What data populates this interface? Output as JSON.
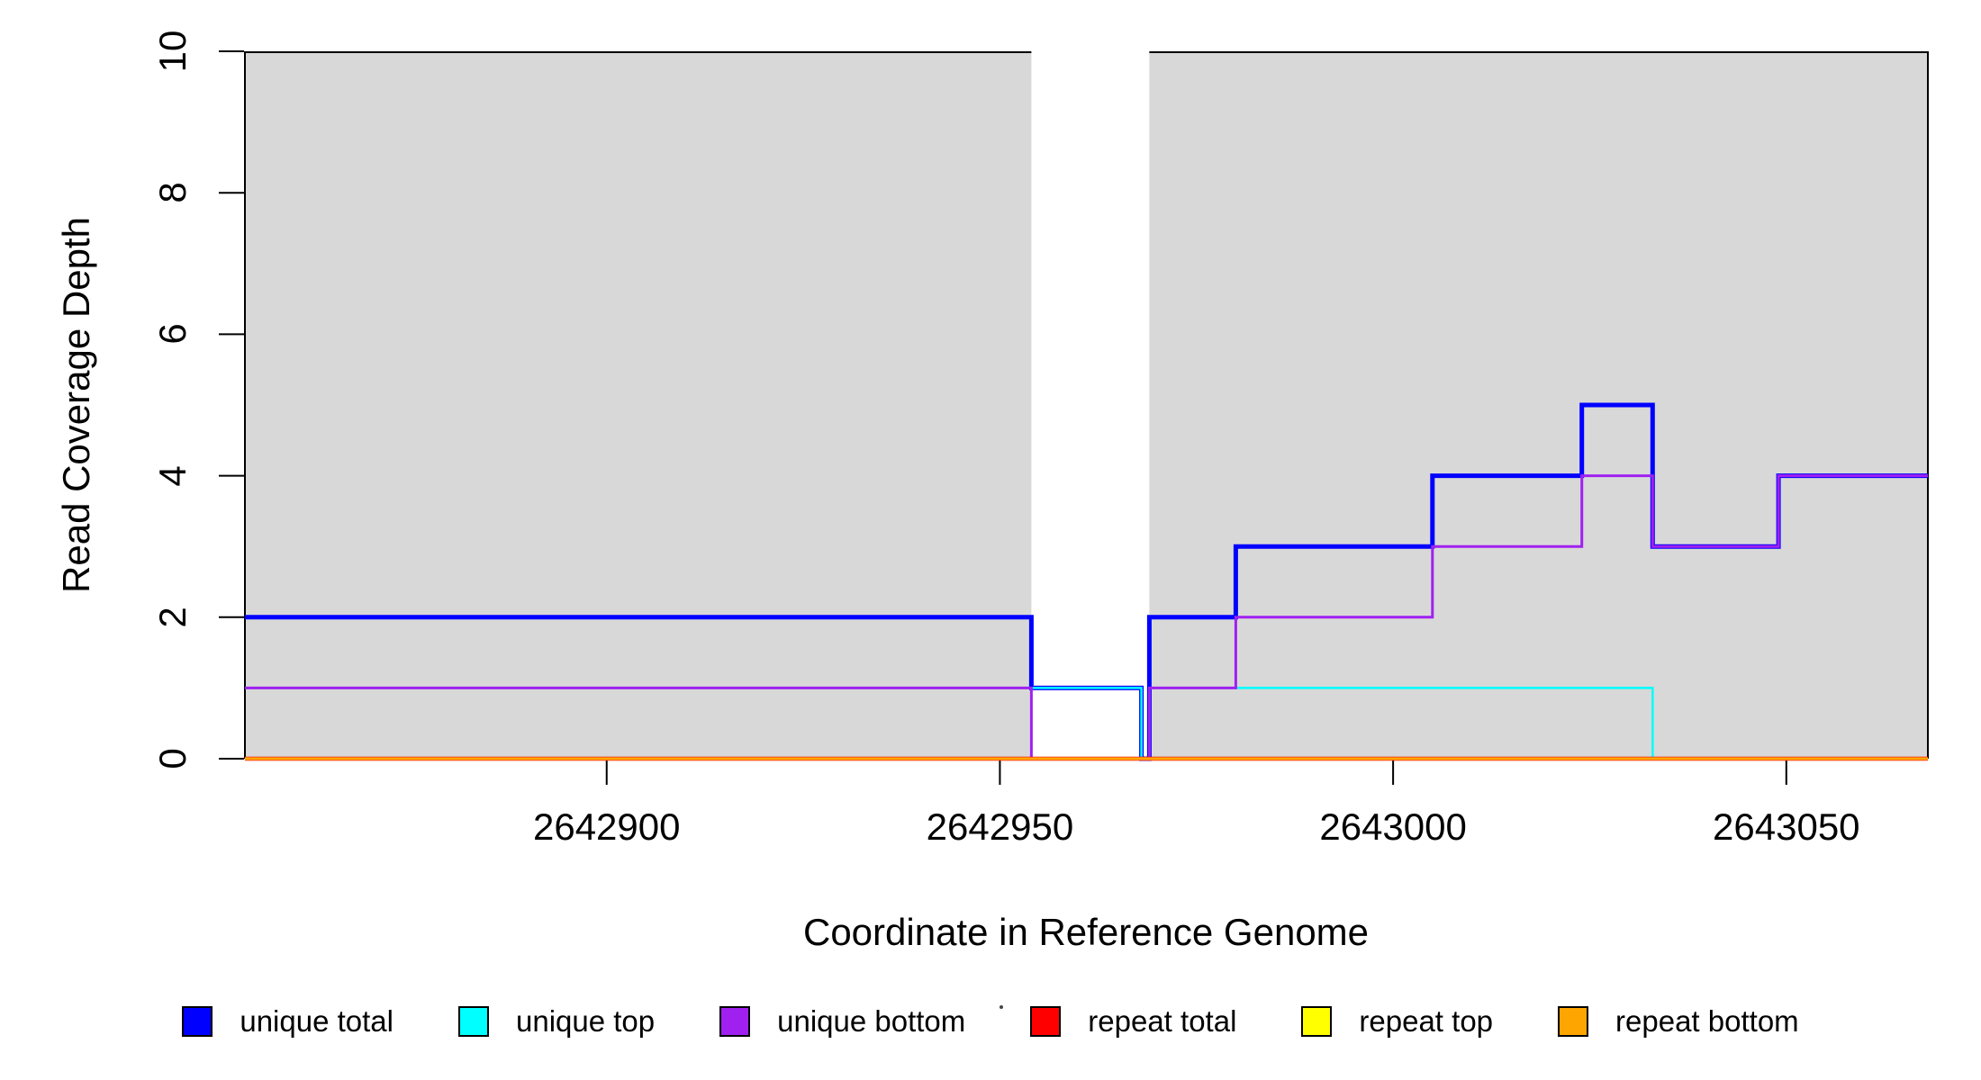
{
  "figure": {
    "kind": "R-style read coverage step plot",
    "background": "#FFFFFF"
  },
  "chart_data": {
    "type": "line",
    "subtype": "step",
    "title": "",
    "xlabel": "Coordinate in Reference Genome",
    "ylabel": "Read Coverage Depth",
    "xlim": [
      2642854,
      2643068
    ],
    "ylim": [
      0,
      10
    ],
    "grid": false,
    "x_ticks": [
      2642900,
      2642950,
      2643000,
      2643050
    ],
    "x_tick_labels": [
      "2642900",
      "2642950",
      "2643000",
      "2643050"
    ],
    "y_ticks": [
      0,
      2,
      4,
      6,
      8,
      10
    ],
    "y_tick_labels": [
      "0",
      "2",
      "4",
      "6",
      "8",
      "10"
    ],
    "region_color": "#D8D8D8",
    "box_color": "#000000",
    "shaded_regions": [
      {
        "from": 2642854,
        "to": 2642954
      },
      {
        "from": 2642969,
        "to": 2643068
      }
    ],
    "gap_region": {
      "from": 2642954,
      "to": 2642969
    },
    "series": [
      {
        "name": "unique total",
        "color": "#0000FF",
        "width": 5,
        "points": [
          [
            2642854,
            2
          ],
          [
            2642954,
            2
          ],
          [
            2642954,
            1
          ],
          [
            2642968,
            1
          ],
          [
            2642968,
            0
          ],
          [
            2642969,
            0
          ],
          [
            2642969,
            2
          ],
          [
            2642980,
            2
          ],
          [
            2642980,
            3
          ],
          [
            2643005,
            3
          ],
          [
            2643005,
            4
          ],
          [
            2643024,
            4
          ],
          [
            2643024,
            5
          ],
          [
            2643033,
            5
          ],
          [
            2643033,
            3
          ],
          [
            2643049,
            3
          ],
          [
            2643049,
            4
          ],
          [
            2643068,
            4
          ]
        ]
      },
      {
        "name": "unique top",
        "color": "#00FFFF",
        "width": 2.5,
        "points": [
          [
            2642854,
            1
          ],
          [
            2642968,
            1
          ],
          [
            2642968,
            0
          ],
          [
            2642969,
            0
          ],
          [
            2642969,
            1
          ],
          [
            2643033,
            1
          ],
          [
            2643033,
            0
          ],
          [
            2643068,
            0
          ]
        ]
      },
      {
        "name": "unique bottom",
        "color": "#A020F0",
        "width": 3,
        "points": [
          [
            2642854,
            1
          ],
          [
            2642954,
            1
          ],
          [
            2642954,
            0
          ],
          [
            2642969,
            0
          ],
          [
            2642969,
            1
          ],
          [
            2642980,
            1
          ],
          [
            2642980,
            2
          ],
          [
            2643005,
            2
          ],
          [
            2643005,
            3
          ],
          [
            2643024,
            3
          ],
          [
            2643024,
            4
          ],
          [
            2643033,
            4
          ],
          [
            2643033,
            3
          ],
          [
            2643049,
            3
          ],
          [
            2643049,
            4
          ],
          [
            2643068,
            4
          ]
        ]
      },
      {
        "name": "repeat total",
        "color": "#FF0000",
        "width": 4.5,
        "points": [
          [
            2642854,
            0
          ],
          [
            2643068,
            0
          ]
        ]
      },
      {
        "name": "repeat top",
        "color": "#FFFF00",
        "width": 3,
        "points": [
          [
            2642854,
            0
          ],
          [
            2643068,
            0
          ]
        ]
      },
      {
        "name": "repeat bottom",
        "color": "#FFA500",
        "width": 2.5,
        "points": [
          [
            2642854,
            0
          ],
          [
            2643068,
            0
          ]
        ]
      }
    ],
    "legend": {
      "position": "bottom",
      "entries": [
        {
          "label": "unique total",
          "color": "#0000FF"
        },
        {
          "label": "unique top",
          "color": "#00FFFF"
        },
        {
          "label": "unique bottom",
          "color": "#A020F0"
        },
        {
          "label": "repeat total",
          "color": "#FF0000"
        },
        {
          "label": "repeat top",
          "color": "#FFFF00"
        },
        {
          "label": "repeat bottom",
          "color": "#FFA500"
        }
      ]
    }
  }
}
